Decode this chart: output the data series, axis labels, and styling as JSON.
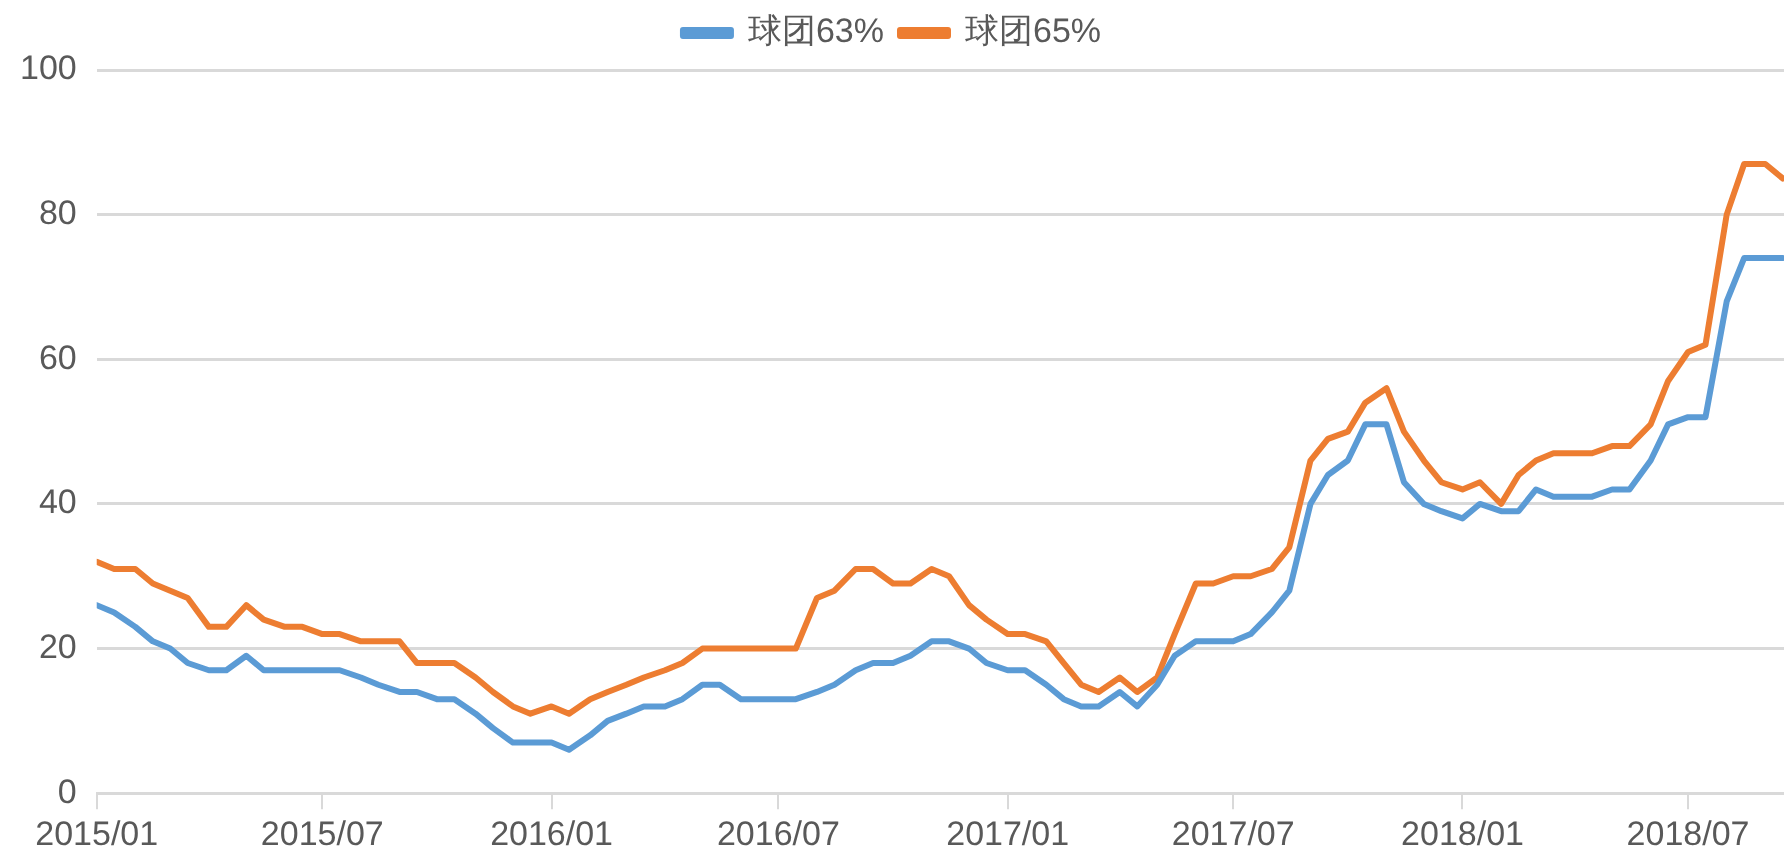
{
  "chart_data": {
    "type": "line",
    "x": [
      "2015-01-01",
      "2015-01-15",
      "2015-02-01",
      "2015-02-15",
      "2015-03-01",
      "2015-03-15",
      "2015-04-01",
      "2015-04-15",
      "2015-05-01",
      "2015-05-15",
      "2015-06-01",
      "2015-06-15",
      "2015-07-01",
      "2015-07-15",
      "2015-08-01",
      "2015-08-15",
      "2015-09-01",
      "2015-09-15",
      "2015-10-01",
      "2015-10-15",
      "2015-11-01",
      "2015-11-15",
      "2015-12-01",
      "2015-12-15",
      "2016-01-01",
      "2016-01-15",
      "2016-02-01",
      "2016-02-15",
      "2016-03-01",
      "2016-03-15",
      "2016-04-01",
      "2016-04-15",
      "2016-05-01",
      "2016-05-15",
      "2016-06-01",
      "2016-06-15",
      "2016-07-01",
      "2016-07-15",
      "2016-08-01",
      "2016-08-15",
      "2016-09-01",
      "2016-09-15",
      "2016-10-01",
      "2016-10-15",
      "2016-11-01",
      "2016-11-15",
      "2016-12-01",
      "2016-12-15",
      "2017-01-01",
      "2017-01-15",
      "2017-02-01",
      "2017-02-15",
      "2017-03-01",
      "2017-03-15",
      "2017-04-01",
      "2017-04-15",
      "2017-05-01",
      "2017-05-15",
      "2017-06-01",
      "2017-06-15",
      "2017-07-01",
      "2017-07-15",
      "2017-08-01",
      "2017-08-15",
      "2017-09-01",
      "2017-09-15",
      "2017-10-01",
      "2017-10-15",
      "2017-11-01",
      "2017-11-15",
      "2017-12-01",
      "2017-12-15",
      "2018-01-01",
      "2018-01-15",
      "2018-02-01",
      "2018-02-15",
      "2018-03-01",
      "2018-03-15",
      "2018-04-01",
      "2018-04-15",
      "2018-05-01",
      "2018-05-15",
      "2018-06-01",
      "2018-06-15",
      "2018-07-01",
      "2018-07-15",
      "2018-08-01",
      "2018-08-15",
      "2018-09-01",
      "2018-09-15"
    ],
    "series": [
      {
        "name": "球团63%",
        "color": "#5b9bd5",
        "values": [
          26,
          25,
          23,
          21,
          20,
          18,
          17,
          17,
          19,
          17,
          17,
          17,
          17,
          17,
          16,
          15,
          14,
          14,
          13,
          13,
          11,
          9,
          7,
          7,
          7,
          6,
          8,
          10,
          11,
          12,
          12,
          13,
          15,
          15,
          13,
          13,
          13,
          13,
          14,
          15,
          17,
          18,
          18,
          19,
          21,
          21,
          20,
          18,
          17,
          17,
          15,
          13,
          12,
          12,
          14,
          12,
          15,
          19,
          21,
          21,
          21,
          22,
          25,
          28,
          40,
          44,
          46,
          51,
          51,
          43,
          40,
          39,
          38,
          40,
          39,
          39,
          42,
          41,
          41,
          41,
          42,
          42,
          46,
          51,
          52,
          52,
          68,
          74,
          74,
          74
        ]
      },
      {
        "name": "球团65%",
        "color": "#ed7d31",
        "values": [
          32,
          31,
          31,
          29,
          28,
          27,
          23,
          23,
          26,
          24,
          23,
          23,
          22,
          22,
          21,
          21,
          21,
          18,
          18,
          18,
          16,
          14,
          12,
          11,
          12,
          11,
          13,
          14,
          15,
          16,
          17,
          18,
          20,
          20,
          20,
          20,
          20,
          20,
          27,
          28,
          31,
          31,
          29,
          29,
          31,
          30,
          26,
          24,
          22,
          22,
          21,
          18,
          15,
          14,
          16,
          14,
          16,
          22,
          29,
          29,
          30,
          30,
          31,
          34,
          46,
          49,
          50,
          54,
          56,
          50,
          46,
          43,
          42,
          43,
          40,
          44,
          46,
          47,
          47,
          47,
          48,
          48,
          51,
          57,
          61,
          62,
          80,
          87,
          87,
          85
        ]
      }
    ],
    "xlim": [
      "2015-01-01",
      "2018-09-16"
    ],
    "xticks": [
      {
        "value": "2015-01-01",
        "label": "2015/01"
      },
      {
        "value": "2015-07-01",
        "label": "2015/07"
      },
      {
        "value": "2016-01-01",
        "label": "2016/01"
      },
      {
        "value": "2016-07-01",
        "label": "2016/07"
      },
      {
        "value": "2017-01-01",
        "label": "2017/01"
      },
      {
        "value": "2017-07-01",
        "label": "2017/07"
      },
      {
        "value": "2018-01-01",
        "label": "2018/01"
      },
      {
        "value": "2018-07-01",
        "label": "2018/07"
      }
    ],
    "ylim": [
      0,
      100
    ],
    "yticks": [
      0,
      20,
      40,
      60,
      80,
      100
    ],
    "grid": "y",
    "legend": "top",
    "marker": "none",
    "line_style": "solid"
  }
}
